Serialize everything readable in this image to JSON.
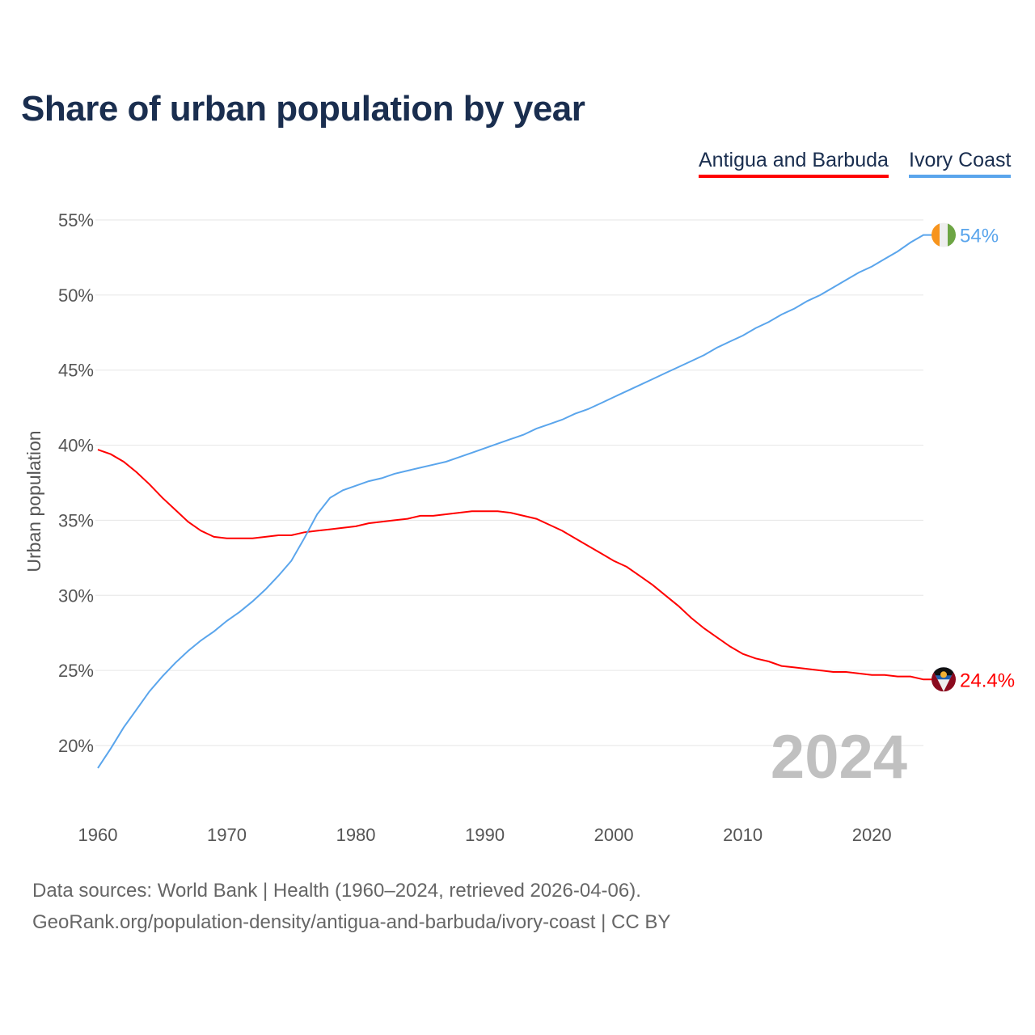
{
  "chart_data": {
    "type": "line",
    "title": "Share of urban population by year",
    "xlabel": "",
    "ylabel": "Urban population",
    "xlim": [
      1960,
      2024
    ],
    "ylim": [
      17,
      56
    ],
    "xticks": [
      1960,
      1970,
      1980,
      1990,
      2000,
      2010,
      2020
    ],
    "yticks": [
      20,
      25,
      30,
      35,
      40,
      45,
      50,
      55
    ],
    "ytick_labels": [
      "20%",
      "25%",
      "30%",
      "35%",
      "40%",
      "45%",
      "50%",
      "55%"
    ],
    "grid": true,
    "legend_placement": "top-right",
    "year_watermark": "2024",
    "x": [
      1960,
      1961,
      1962,
      1963,
      1964,
      1965,
      1966,
      1967,
      1968,
      1969,
      1970,
      1971,
      1972,
      1973,
      1974,
      1975,
      1976,
      1977,
      1978,
      1979,
      1980,
      1981,
      1982,
      1983,
      1984,
      1985,
      1986,
      1987,
      1988,
      1989,
      1990,
      1991,
      1992,
      1993,
      1994,
      1995,
      1996,
      1997,
      1998,
      1999,
      2000,
      2001,
      2002,
      2003,
      2004,
      2005,
      2006,
      2007,
      2008,
      2009,
      2010,
      2011,
      2012,
      2013,
      2014,
      2015,
      2016,
      2017,
      2018,
      2019,
      2020,
      2021,
      2022,
      2023,
      2024
    ],
    "series": [
      {
        "name": "Antigua and Barbuda",
        "color": "#ff0000",
        "end_label": "24.4%",
        "values": [
          39.7,
          39.4,
          38.9,
          38.2,
          37.4,
          36.5,
          35.7,
          34.9,
          34.3,
          33.9,
          33.8,
          33.8,
          33.8,
          33.9,
          34.0,
          34.0,
          34.2,
          34.3,
          34.4,
          34.5,
          34.6,
          34.8,
          34.9,
          35.0,
          35.1,
          35.3,
          35.3,
          35.4,
          35.5,
          35.6,
          35.6,
          35.6,
          35.5,
          35.3,
          35.1,
          34.7,
          34.3,
          33.8,
          33.3,
          32.8,
          32.3,
          31.9,
          31.3,
          30.7,
          30.0,
          29.3,
          28.5,
          27.8,
          27.2,
          26.6,
          26.1,
          25.8,
          25.6,
          25.3,
          25.2,
          25.1,
          25.0,
          24.9,
          24.9,
          24.8,
          24.7,
          24.7,
          24.6,
          24.6,
          24.4
        ]
      },
      {
        "name": "Ivory Coast",
        "color": "#5aa5ec",
        "end_label": "54%",
        "values": [
          18.5,
          19.8,
          21.2,
          22.4,
          23.6,
          24.6,
          25.5,
          26.3,
          27.0,
          27.6,
          28.3,
          28.9,
          29.6,
          30.4,
          31.3,
          32.3,
          33.8,
          35.4,
          36.5,
          37.0,
          37.3,
          37.6,
          37.8,
          38.1,
          38.3,
          38.5,
          38.7,
          38.9,
          39.2,
          39.5,
          39.8,
          40.1,
          40.4,
          40.7,
          41.1,
          41.4,
          41.7,
          42.1,
          42.4,
          42.8,
          43.2,
          43.6,
          44.0,
          44.4,
          44.8,
          45.2,
          45.6,
          46.0,
          46.5,
          46.9,
          47.3,
          47.8,
          48.2,
          48.7,
          49.1,
          49.6,
          50.0,
          50.5,
          51.0,
          51.5,
          51.9,
          52.4,
          52.9,
          53.5,
          54.0
        ]
      }
    ]
  },
  "footer": {
    "line1": "Data sources: World Bank | Health (1960–2024, retrieved 2026-04-06).",
    "line2": "GeoRank.org/population-density/antigua-and-barbuda/ivory-coast | CC BY"
  }
}
